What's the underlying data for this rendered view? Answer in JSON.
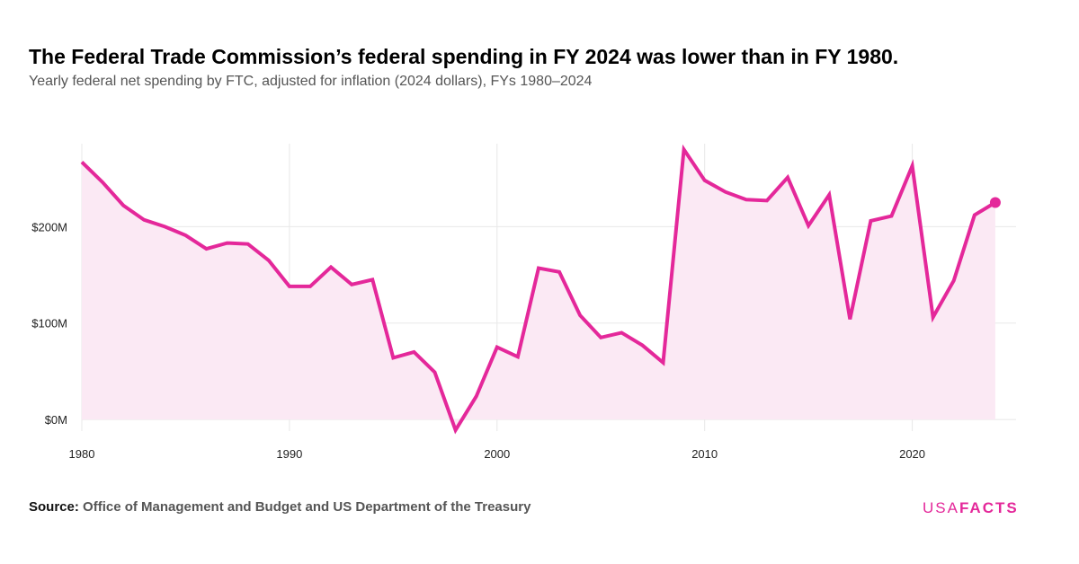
{
  "header": {
    "title": "The Federal Trade Commission’s federal spending in FY 2024 was lower than in FY 1980.",
    "subtitle": "Yearly federal net spending by FTC, adjusted for inflation (2024 dollars), FYs 1980–2024"
  },
  "footer": {
    "source_label": "Source:",
    "source_text": "Office of Management and Budget and US Department of the Treasury",
    "logo_part1": "USA",
    "logo_part2": "FACTS"
  },
  "colors": {
    "line": "#e4289a",
    "fill": "#fbe9f4",
    "grid": "#e8e8e8"
  },
  "chart_data": {
    "type": "area",
    "title": "The Federal Trade Commission’s federal spending in FY 2024 was lower than in FY 1980.",
    "subtitle": "Yearly federal net spending by FTC, adjusted for inflation (2024 dollars), FYs 1980–2024",
    "xlabel": "",
    "ylabel": "",
    "x_ticks": [
      1980,
      1990,
      2000,
      2010,
      2020
    ],
    "y_ticks": [
      {
        "value": 0,
        "label": "$0M"
      },
      {
        "value": 100,
        "label": "$100M"
      },
      {
        "value": 200,
        "label": "$200M"
      }
    ],
    "xlim": [
      1980,
      2025
    ],
    "ylim": [
      -12,
      286
    ],
    "grid": true,
    "legend": "none",
    "units": "millions of 2024 dollars",
    "highlight_last_point": true,
    "series": [
      {
        "x": [
          1980,
          1981,
          1982,
          1983,
          1984,
          1985,
          1986,
          1987,
          1988,
          1989,
          1990,
          1991,
          1992,
          1993,
          1994,
          1995,
          1996,
          1997,
          1998,
          1999,
          2000,
          2001,
          2002,
          2003,
          2004,
          2005,
          2006,
          2007,
          2008,
          2009,
          2010,
          2011,
          2012,
          2013,
          2014,
          2015,
          2016,
          2017,
          2018,
          2019,
          2020,
          2021,
          2022,
          2023,
          2024
        ],
        "values": [
          267,
          246,
          222,
          207,
          200,
          191,
          177,
          183,
          182,
          165,
          138,
          138,
          158,
          140,
          145,
          64,
          70,
          49,
          -11,
          24,
          75,
          65,
          157,
          153,
          108,
          85,
          90,
          77,
          59,
          280,
          248,
          236,
          228,
          227,
          251,
          201,
          233,
          104,
          206,
          211,
          263,
          106,
          144,
          212,
          225
        ]
      }
    ]
  }
}
